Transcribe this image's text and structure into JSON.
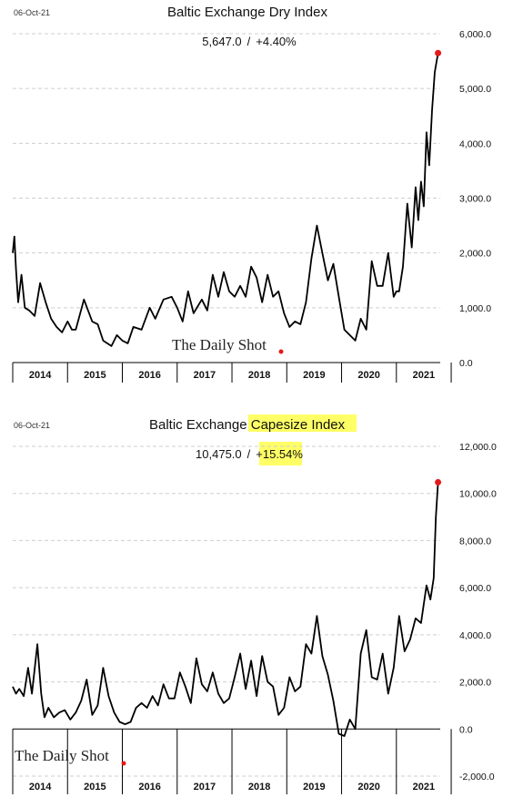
{
  "chart_data": [
    {
      "type": "line",
      "date": "06-Oct-21",
      "title": "Baltic Exchange Dry Index",
      "title_plain": "Baltic Exchange Dry Index",
      "title_highlight": "",
      "subtitle_value": "5,647.0",
      "subtitle_sep": "/",
      "subtitle_change": "+4.40%",
      "change_highlighted": false,
      "watermark": "The Daily Shot",
      "watermark_position": "bottom-center",
      "ylim": [
        0,
        6000
      ],
      "ytick_values": [
        0,
        1000,
        2000,
        3000,
        4000,
        5000,
        6000
      ],
      "ytick_labels": [
        "0.0",
        "1,000.0",
        "2,000.0",
        "3,000.0",
        "4,000.0",
        "5,000.0",
        "6,000.0"
      ],
      "xlim": [
        2014.0,
        2021.8
      ],
      "years": [
        "2014",
        "2015",
        "2016",
        "2017",
        "2018",
        "2019",
        "2020",
        "2021"
      ],
      "grid": "horizontal",
      "last_point_color": "#e41a1c",
      "line_color": "#000000",
      "series": [
        {
          "x": [
            2014.0,
            2014.03,
            2014.06,
            2014.1,
            2014.16,
            2014.22,
            2014.3,
            2014.4,
            2014.5,
            2014.6,
            2014.7,
            2014.8,
            2014.9,
            2015.0,
            2015.08,
            2015.15,
            2015.3,
            2015.45,
            2015.55,
            2015.65,
            2015.8,
            2015.9,
            2016.0,
            2016.1,
            2016.2,
            2016.35,
            2016.5,
            2016.6,
            2016.75,
            2016.9,
            2017.0,
            2017.1,
            2017.2,
            2017.3,
            2017.45,
            2017.55,
            2017.65,
            2017.75,
            2017.85,
            2017.95,
            2018.05,
            2018.15,
            2018.25,
            2018.35,
            2018.45,
            2018.55,
            2018.65,
            2018.75,
            2018.85,
            2018.95,
            2019.05,
            2019.15,
            2019.25,
            2019.35,
            2019.45,
            2019.55,
            2019.65,
            2019.75,
            2019.85,
            2019.95,
            2020.05,
            2020.15,
            2020.25,
            2020.35,
            2020.45,
            2020.55,
            2020.65,
            2020.75,
            2020.85,
            2020.95,
            2021.0,
            2021.05,
            2021.12,
            2021.2,
            2021.28,
            2021.35,
            2021.4,
            2021.45,
            2021.5,
            2021.55,
            2021.6,
            2021.65,
            2021.7,
            2021.76
          ],
          "y": [
            2000,
            2300,
            1700,
            1100,
            1600,
            1000,
            950,
            850,
            1450,
            1100,
            800,
            650,
            550,
            750,
            600,
            600,
            1150,
            750,
            700,
            400,
            300,
            500,
            400,
            350,
            650,
            600,
            1000,
            800,
            1150,
            1200,
            1000,
            750,
            1300,
            900,
            1150,
            950,
            1600,
            1200,
            1650,
            1300,
            1200,
            1400,
            1200,
            1750,
            1550,
            1100,
            1600,
            1200,
            1300,
            900,
            650,
            750,
            700,
            1100,
            1900,
            2500,
            2000,
            1500,
            1800,
            1200,
            600,
            500,
            400,
            800,
            600,
            1850,
            1400,
            1400,
            2000,
            1200,
            1300,
            1300,
            1750,
            2900,
            2100,
            3200,
            2600,
            3300,
            2850,
            4200,
            3600,
            4600,
            5300,
            5647
          ]
        }
      ]
    },
    {
      "type": "line",
      "date": "06-Oct-21",
      "title": "Baltic Exchange Capesize Index",
      "title_plain": "Baltic Exchange ",
      "title_highlight": "Capesize Index",
      "subtitle_value": "10,475.0",
      "subtitle_sep": "/",
      "subtitle_change": "+15.54%",
      "change_highlighted": true,
      "highlight_color": "#ffff66",
      "watermark": "The Daily Shot",
      "watermark_position": "bottom-left",
      "ylim": [
        -2000,
        12000
      ],
      "ytick_values": [
        -2000,
        0,
        2000,
        4000,
        6000,
        8000,
        10000,
        12000
      ],
      "ytick_labels": [
        "-2,000.0",
        "0.0",
        "2,000.0",
        "4,000.0",
        "6,000.0",
        "8,000.0",
        "10,000.0",
        "12,000.0"
      ],
      "xlim": [
        2014.0,
        2021.8
      ],
      "years": [
        "2014",
        "2015",
        "2016",
        "2017",
        "2018",
        "2019",
        "2020",
        "2021"
      ],
      "grid": "horizontal",
      "last_point_color": "#e41a1c",
      "line_color": "#000000",
      "series": [
        {
          "x": [
            2014.0,
            2014.06,
            2014.12,
            2014.2,
            2014.28,
            2014.35,
            2014.45,
            2014.52,
            2014.58,
            2014.65,
            2014.75,
            2014.85,
            2014.95,
            2015.05,
            2015.15,
            2015.25,
            2015.35,
            2015.45,
            2015.55,
            2015.65,
            2015.75,
            2015.85,
            2015.95,
            2016.05,
            2016.15,
            2016.25,
            2016.35,
            2016.45,
            2016.55,
            2016.65,
            2016.75,
            2016.85,
            2016.95,
            2017.05,
            2017.15,
            2017.25,
            2017.35,
            2017.45,
            2017.55,
            2017.65,
            2017.75,
            2017.85,
            2017.95,
            2018.05,
            2018.15,
            2018.25,
            2018.35,
            2018.45,
            2018.55,
            2018.65,
            2018.75,
            2018.85,
            2018.95,
            2019.05,
            2019.15,
            2019.25,
            2019.35,
            2019.45,
            2019.55,
            2019.65,
            2019.75,
            2019.85,
            2019.95,
            2020.05,
            2020.15,
            2020.25,
            2020.35,
            2020.45,
            2020.55,
            2020.65,
            2020.75,
            2020.85,
            2020.95,
            2021.05,
            2021.15,
            2021.25,
            2021.35,
            2021.45,
            2021.55,
            2021.62,
            2021.68,
            2021.72,
            2021.76
          ],
          "y": [
            1800,
            1500,
            1700,
            1400,
            2600,
            1500,
            3600,
            1500,
            500,
            900,
            500,
            700,
            800,
            400,
            700,
            1200,
            2100,
            600,
            1000,
            2600,
            1400,
            700,
            300,
            200,
            300,
            900,
            1100,
            900,
            1400,
            1000,
            1900,
            1300,
            1300,
            2400,
            1800,
            1100,
            3000,
            1900,
            1600,
            2400,
            1500,
            1100,
            1300,
            2200,
            3200,
            1700,
            2900,
            1400,
            3100,
            2000,
            1800,
            600,
            900,
            2200,
            1600,
            1800,
            3600,
            3200,
            4800,
            3100,
            2300,
            1200,
            -200,
            -300,
            400,
            0,
            3200,
            4200,
            2200,
            2100,
            3200,
            1500,
            2600,
            4800,
            3300,
            3800,
            4700,
            4500,
            6100,
            5500,
            6400,
            9000,
            10475
          ]
        }
      ]
    }
  ]
}
